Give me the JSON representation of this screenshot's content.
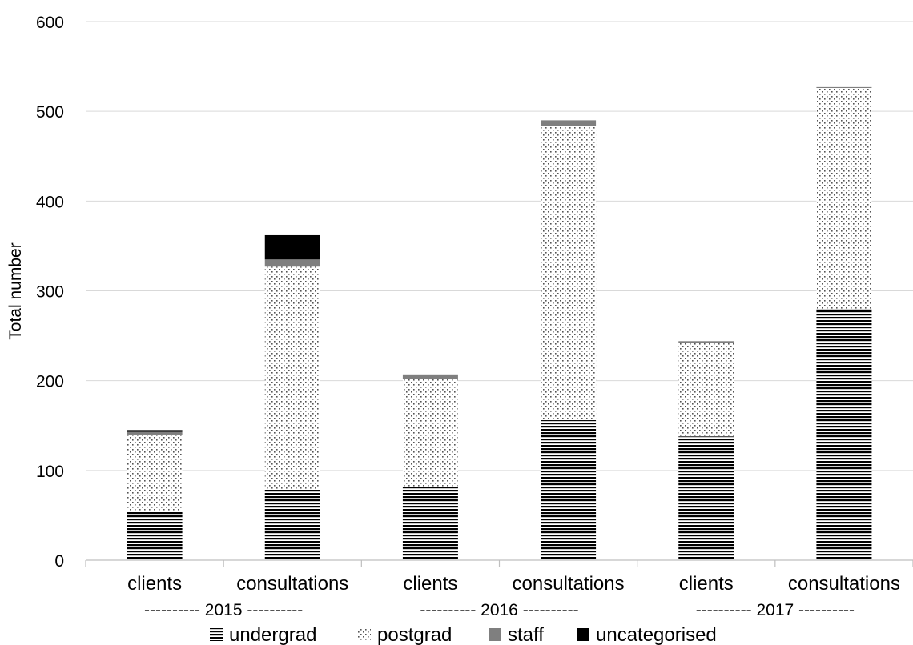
{
  "chart_data": {
    "type": "bar",
    "stacked": true,
    "ylabel": "Total number",
    "ylim": [
      0,
      600
    ],
    "yticks": [
      0,
      100,
      200,
      300,
      400,
      500,
      600
    ],
    "grid": true,
    "legend_position": "bottom",
    "groups": [
      {
        "label": "---------- 2015 ----------",
        "categories": [
          "clients",
          "consultations"
        ]
      },
      {
        "label": "---------- 2016 ----------",
        "categories": [
          "clients",
          "consultations"
        ]
      },
      {
        "label": "---------- 2017 ----------",
        "categories": [
          "clients",
          "consultations"
        ]
      }
    ],
    "categories": [
      "clients",
      "consultations",
      "clients",
      "consultations",
      "clients",
      "consultations"
    ],
    "series": [
      {
        "name": "undergrad",
        "pattern": "horizontal-lines",
        "color": "#000000",
        "values": [
          55,
          79,
          82,
          156,
          138,
          280
        ]
      },
      {
        "name": "postgrad",
        "pattern": "dots",
        "color": "#000000",
        "values": [
          85,
          248,
          120,
          328,
          104,
          246
        ]
      },
      {
        "name": "staff",
        "pattern": "solid",
        "color": "#7f7f7f",
        "values": [
          3,
          8,
          5,
          6,
          2,
          1
        ]
      },
      {
        "name": "uncategorised",
        "pattern": "solid",
        "color": "#000000",
        "values": [
          2,
          27,
          0,
          0,
          0,
          0
        ]
      }
    ]
  }
}
